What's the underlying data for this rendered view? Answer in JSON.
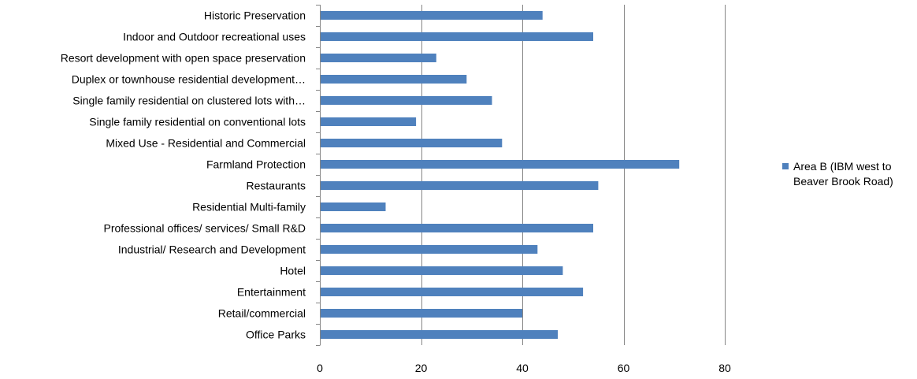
{
  "chart_data": {
    "type": "bar",
    "orientation": "horizontal",
    "categories": [
      "Historic Preservation",
      "Indoor and Outdoor recreational uses",
      "Resort development with open space preservation",
      "Duplex or townhouse residential development…",
      "Single family residential on clustered lots with…",
      "Single family residential on conventional lots",
      "Mixed Use - Residential and Commercial",
      "Farmland Protection",
      "Restaurants",
      "Residential Multi-family",
      "Professional offices/ services/  Small R&D",
      "Industrial/ Research and Development",
      "Hotel",
      "Entertainment",
      "Retail/commercial",
      "Office Parks"
    ],
    "series": [
      {
        "name": "Area B (IBM west to Beaver Brook Road)",
        "color": "#4F81BD",
        "values": [
          44,
          54,
          23,
          29,
          34,
          19,
          36,
          71,
          55,
          13,
          54,
          43,
          48,
          52,
          40,
          47
        ]
      }
    ],
    "xlim": [
      0,
      80
    ],
    "xticks": [
      0,
      20,
      40,
      60,
      80
    ],
    "grid": "vertical",
    "legend_position": "right",
    "title": "",
    "xlabel": "",
    "ylabel": ""
  },
  "legend": {
    "label": "Area B (IBM west to Beaver Brook Road)"
  }
}
